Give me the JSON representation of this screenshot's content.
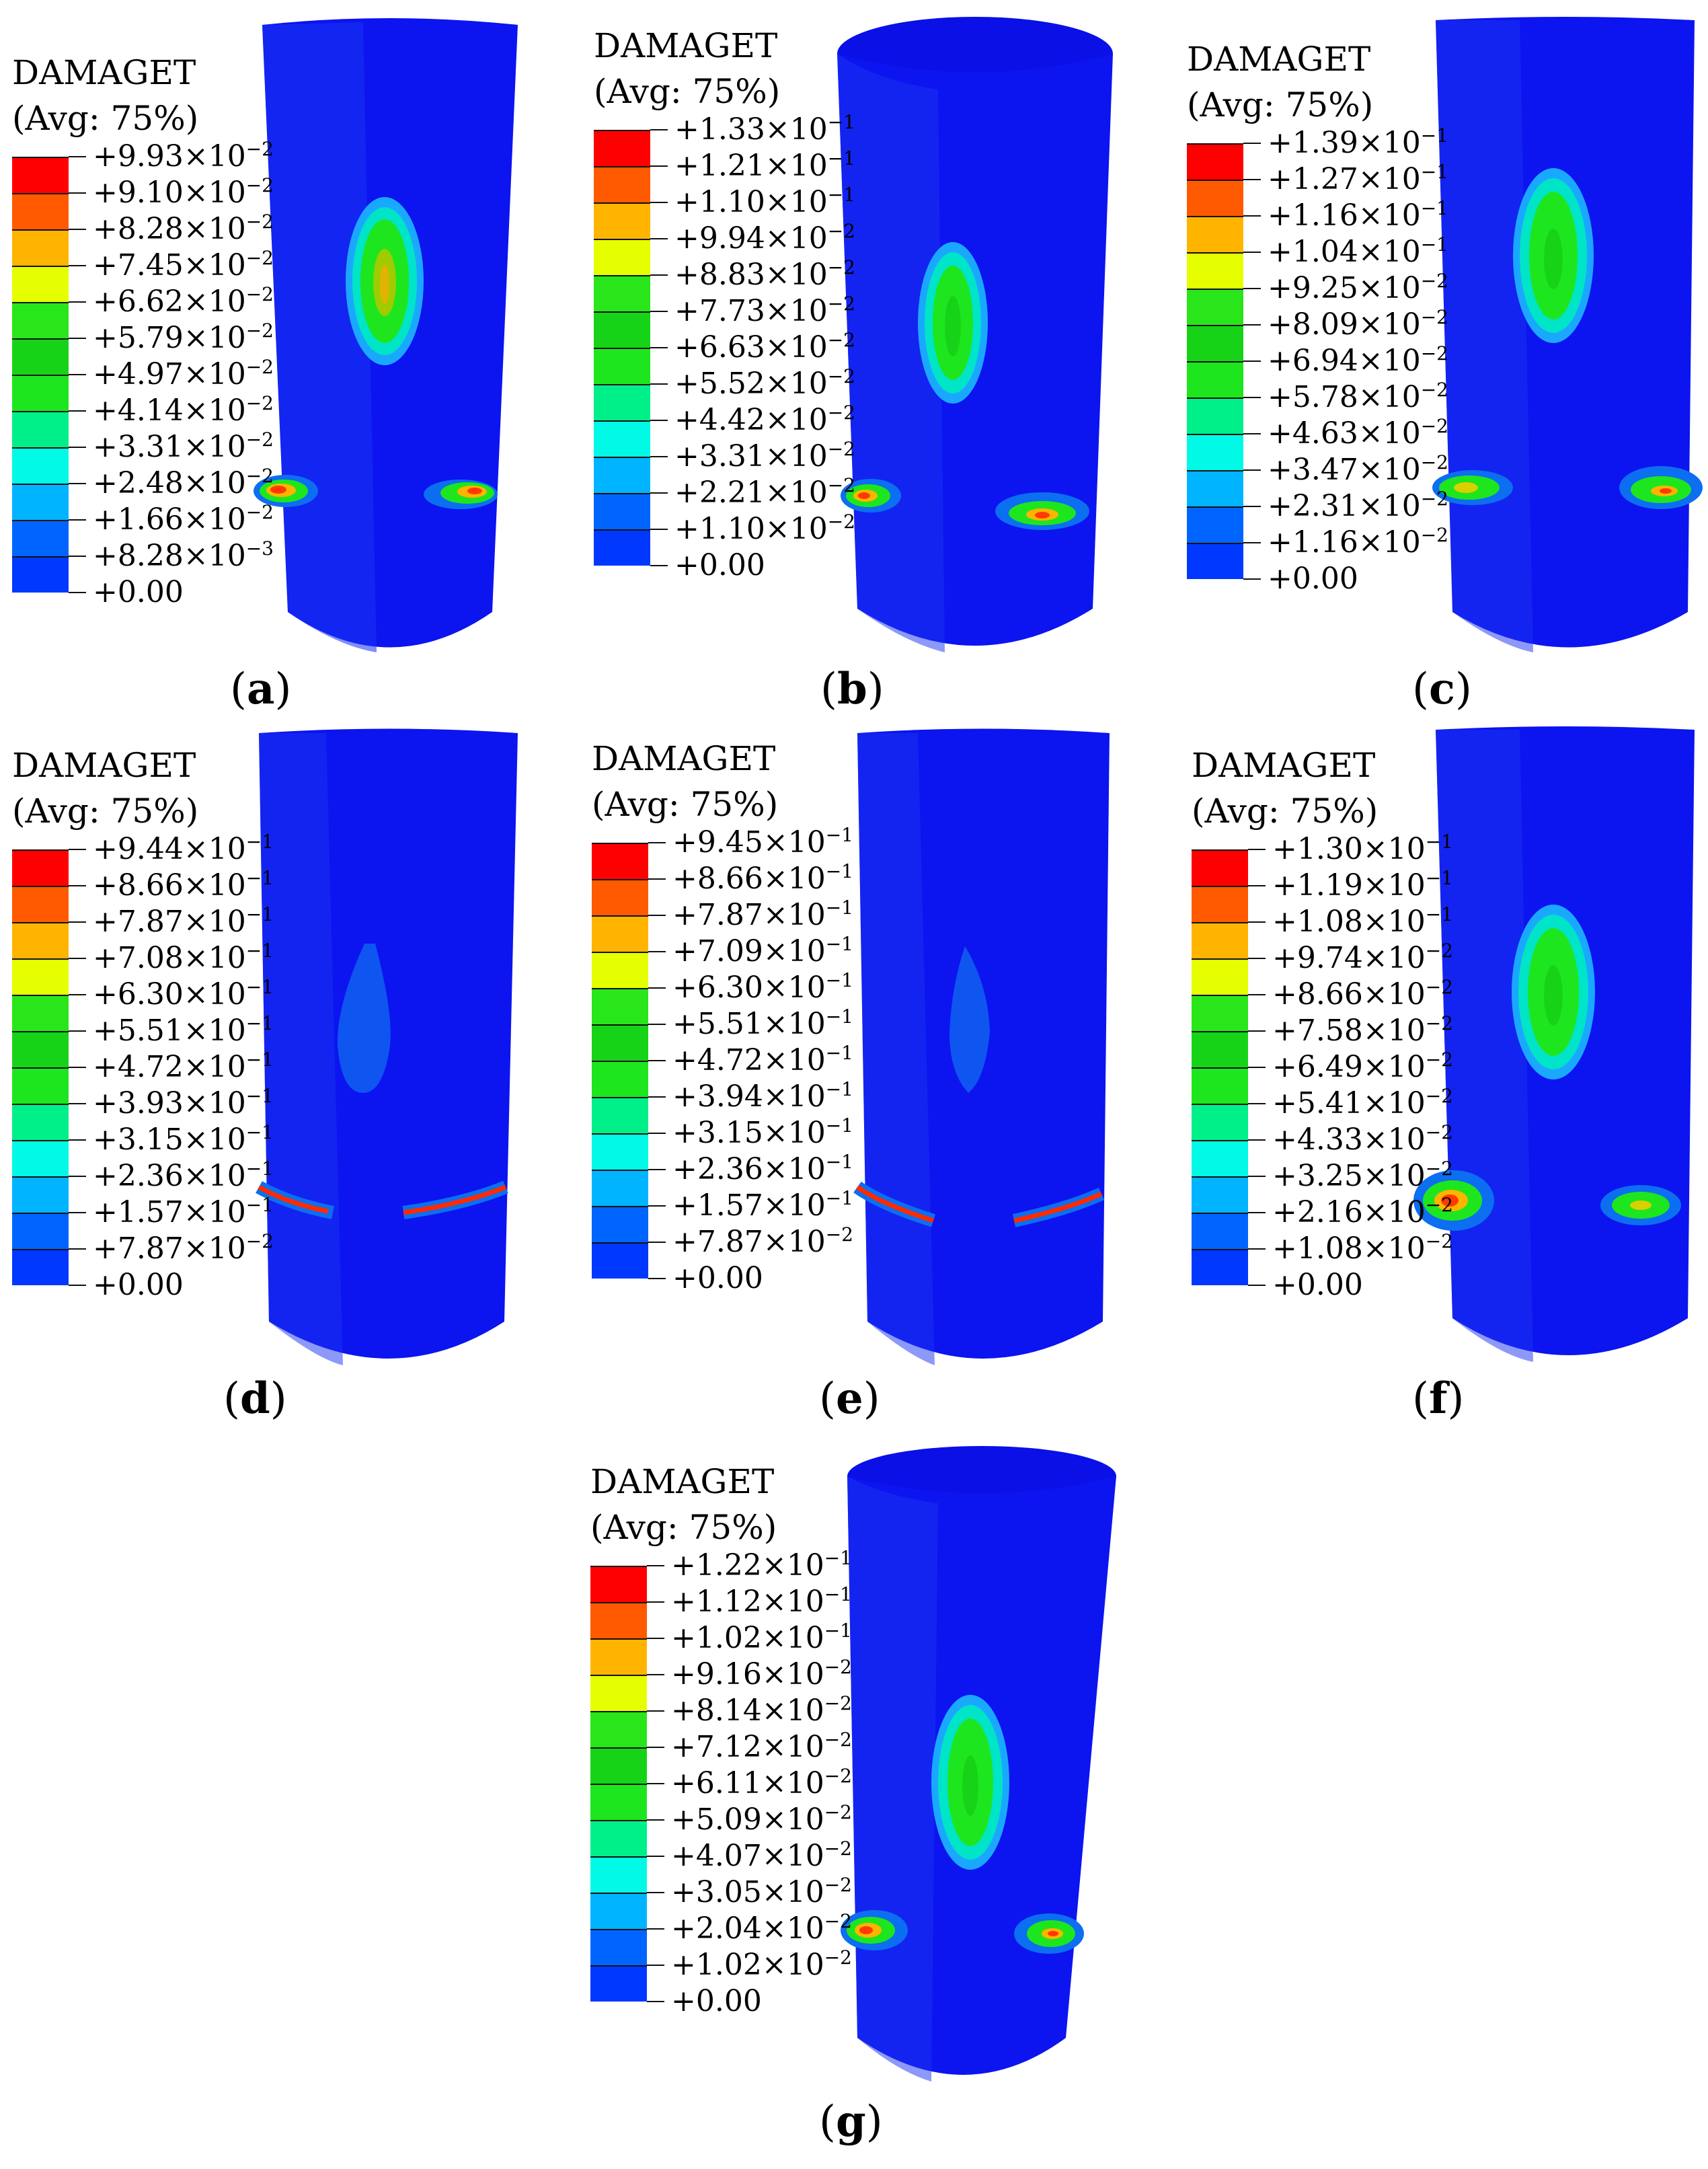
{
  "colors": [
    "#ff0000",
    "#ff5a00",
    "#ffb400",
    "#e6ff00",
    "#28e61a",
    "#17d317",
    "#1ee61e",
    "#00f089",
    "#00fae6",
    "#00b4ff",
    "#0064ff",
    "#0038ff",
    "#0000ff"
  ],
  "panels": [
    {
      "title": "DAMAGET",
      "avg": "(Avg: 75%)",
      "caption_letter": "a",
      "ticks": [
        {
          "m": "+9.93",
          "e": "−2"
        },
        {
          "m": "+9.10",
          "e": "−2"
        },
        {
          "m": "+8.28",
          "e": "−2"
        },
        {
          "m": "+7.45",
          "e": "−2"
        },
        {
          "m": "+6.62",
          "e": "−2"
        },
        {
          "m": "+5.79",
          "e": "−2"
        },
        {
          "m": "+4.97",
          "e": "−2"
        },
        {
          "m": "+4.14",
          "e": "−2"
        },
        {
          "m": "+3.31",
          "e": "−2"
        },
        {
          "m": "+2.48",
          "e": "−2"
        },
        {
          "m": "+1.66",
          "e": "−2"
        },
        {
          "m": "+8.28",
          "e": "−3"
        },
        {
          "m": "+0.00",
          "e": ""
        }
      ]
    },
    {
      "title": "DAMAGET",
      "avg": "(Avg: 75%)",
      "caption_letter": "b",
      "ticks": [
        {
          "m": "+1.33",
          "e": "−1"
        },
        {
          "m": "+1.21",
          "e": "−1"
        },
        {
          "m": "+1.10",
          "e": "−1"
        },
        {
          "m": "+9.94",
          "e": "−2"
        },
        {
          "m": "+8.83",
          "e": "−2"
        },
        {
          "m": "+7.73",
          "e": "−2"
        },
        {
          "m": "+6.63",
          "e": "−2"
        },
        {
          "m": "+5.52",
          "e": "−2"
        },
        {
          "m": "+4.42",
          "e": "−2"
        },
        {
          "m": "+3.31",
          "e": "−2"
        },
        {
          "m": "+2.21",
          "e": "−2"
        },
        {
          "m": "+1.10",
          "e": "−2"
        },
        {
          "m": "+0.00",
          "e": ""
        }
      ]
    },
    {
      "title": "DAMAGET",
      "avg": "(Avg: 75%)",
      "caption_letter": "c",
      "ticks": [
        {
          "m": "+1.39",
          "e": "−1"
        },
        {
          "m": "+1.27",
          "e": "−1"
        },
        {
          "m": "+1.16",
          "e": "−1"
        },
        {
          "m": "+1.04",
          "e": "−1"
        },
        {
          "m": "+9.25",
          "e": "−2"
        },
        {
          "m": "+8.09",
          "e": "−2"
        },
        {
          "m": "+6.94",
          "e": "−2"
        },
        {
          "m": "+5.78",
          "e": "−2"
        },
        {
          "m": "+4.63",
          "e": "−2"
        },
        {
          "m": "+3.47",
          "e": "−2"
        },
        {
          "m": "+2.31",
          "e": "−2"
        },
        {
          "m": "+1.16",
          "e": "−2"
        },
        {
          "m": "+0.00",
          "e": ""
        }
      ]
    },
    {
      "title": "DAMAGET",
      "avg": "(Avg: 75%)",
      "caption_letter": "d",
      "ticks": [
        {
          "m": "+9.44",
          "e": "−1"
        },
        {
          "m": "+8.66",
          "e": "−1"
        },
        {
          "m": "+7.87",
          "e": "−1"
        },
        {
          "m": "+7.08",
          "e": "−1"
        },
        {
          "m": "+6.30",
          "e": "−1"
        },
        {
          "m": "+5.51",
          "e": "−1"
        },
        {
          "m": "+4.72",
          "e": "−1"
        },
        {
          "m": "+3.93",
          "e": "−1"
        },
        {
          "m": "+3.15",
          "e": "−1"
        },
        {
          "m": "+2.36",
          "e": "−1"
        },
        {
          "m": "+1.57",
          "e": "−1"
        },
        {
          "m": "+7.87",
          "e": "−2"
        },
        {
          "m": "+0.00",
          "e": ""
        }
      ]
    },
    {
      "title": "DAMAGET",
      "avg": "(Avg: 75%)",
      "caption_letter": "e",
      "ticks": [
        {
          "m": "+9.45",
          "e": "−1"
        },
        {
          "m": "+8.66",
          "e": "−1"
        },
        {
          "m": "+7.87",
          "e": "−1"
        },
        {
          "m": "+7.09",
          "e": "−1"
        },
        {
          "m": "+6.30",
          "e": "−1"
        },
        {
          "m": "+5.51",
          "e": "−1"
        },
        {
          "m": "+4.72",
          "e": "−1"
        },
        {
          "m": "+3.94",
          "e": "−1"
        },
        {
          "m": "+3.15",
          "e": "−1"
        },
        {
          "m": "+2.36",
          "e": "−1"
        },
        {
          "m": "+1.57",
          "e": "−1"
        },
        {
          "m": "+7.87",
          "e": "−2"
        },
        {
          "m": "+0.00",
          "e": ""
        }
      ]
    },
    {
      "title": "DAMAGET",
      "avg": "(Avg: 75%)",
      "caption_letter": "f",
      "ticks": [
        {
          "m": "+1.30",
          "e": "−1"
        },
        {
          "m": "+1.19",
          "e": "−1"
        },
        {
          "m": "+1.08",
          "e": "−1"
        },
        {
          "m": "+9.74",
          "e": "−2"
        },
        {
          "m": "+8.66",
          "e": "−2"
        },
        {
          "m": "+7.58",
          "e": "−2"
        },
        {
          "m": "+6.49",
          "e": "−2"
        },
        {
          "m": "+5.41",
          "e": "−2"
        },
        {
          "m": "+4.33",
          "e": "−2"
        },
        {
          "m": "+3.25",
          "e": "−2"
        },
        {
          "m": "+2.16",
          "e": "−2"
        },
        {
          "m": "+1.08",
          "e": "−2"
        },
        {
          "m": "+0.00",
          "e": ""
        }
      ]
    },
    {
      "title": "DAMAGET",
      "avg": "(Avg: 75%)",
      "caption_letter": "g",
      "ticks": [
        {
          "m": "+1.22",
          "e": "−1"
        },
        {
          "m": "+1.12",
          "e": "−1"
        },
        {
          "m": "+1.02",
          "e": "−1"
        },
        {
          "m": "+9.16",
          "e": "−2"
        },
        {
          "m": "+8.14",
          "e": "−2"
        },
        {
          "m": "+7.12",
          "e": "−2"
        },
        {
          "m": "+6.11",
          "e": "−2"
        },
        {
          "m": "+5.09",
          "e": "−2"
        },
        {
          "m": "+4.07",
          "e": "−2"
        },
        {
          "m": "+3.05",
          "e": "−2"
        },
        {
          "m": "+2.04",
          "e": "−2"
        },
        {
          "m": "+1.02",
          "e": "−2"
        },
        {
          "m": "+0.00",
          "e": ""
        }
      ]
    }
  ]
}
